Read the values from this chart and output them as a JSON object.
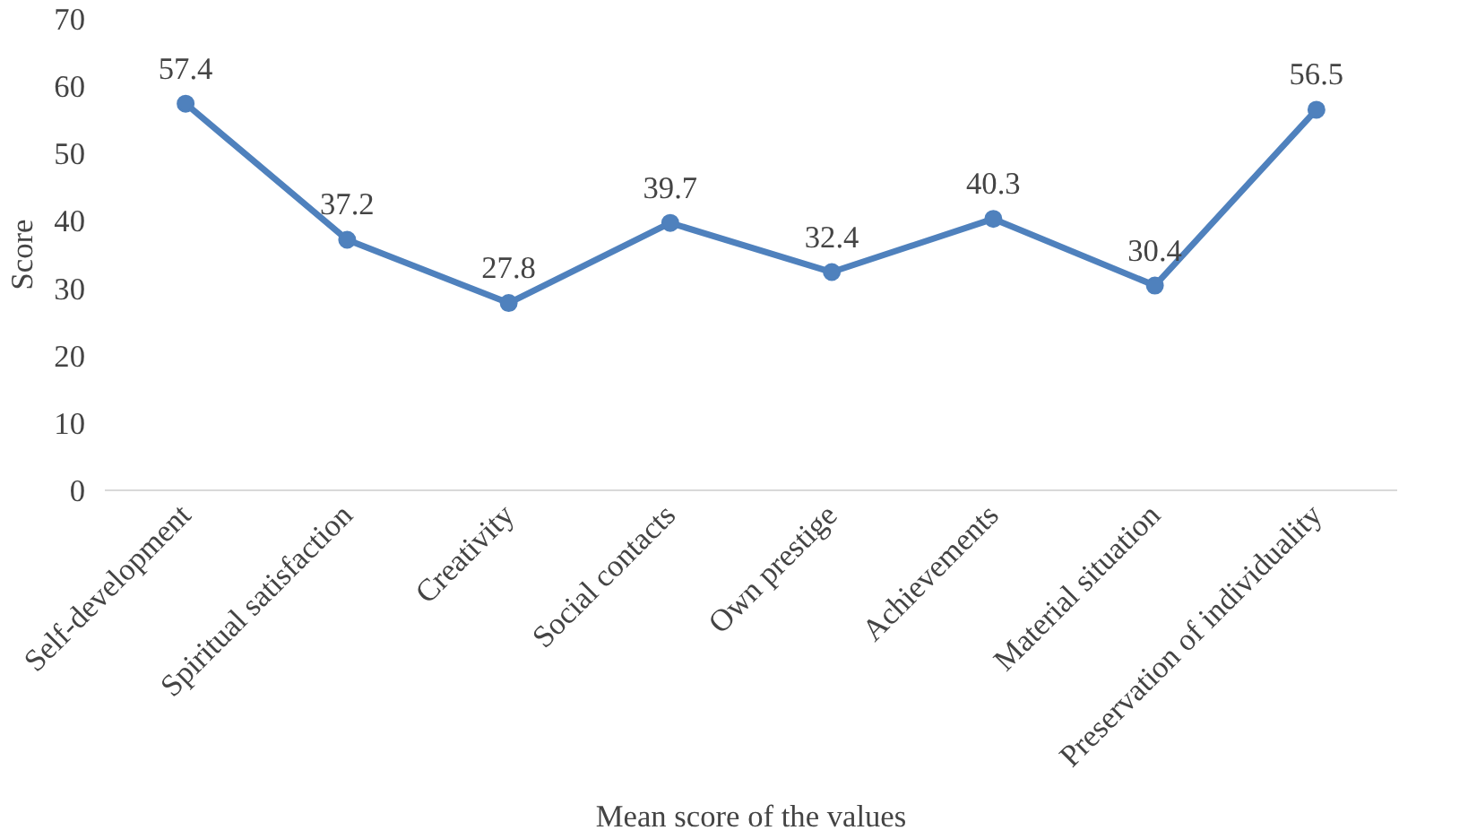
{
  "chart_data": {
    "type": "line",
    "xlabel": "Mean score of the values",
    "ylabel": "Score",
    "categories": [
      "Self-development",
      "Spiritual satisfaction",
      "Creativity",
      "Social contacts",
      "Own prestige",
      "Achievements",
      "Material situation",
      "Preservation of individuality"
    ],
    "series": [
      {
        "color": "#4f81bd",
        "values": [
          57.4,
          37.2,
          27.8,
          39.7,
          32.4,
          40.3,
          30.4,
          56.5
        ]
      }
    ],
    "ylim": [
      0,
      70
    ],
    "yticks": [
      0,
      10,
      20,
      30,
      40,
      50,
      60,
      70
    ],
    "grid": false,
    "marker": "circle",
    "line_style": "solid",
    "data_labels": true
  }
}
